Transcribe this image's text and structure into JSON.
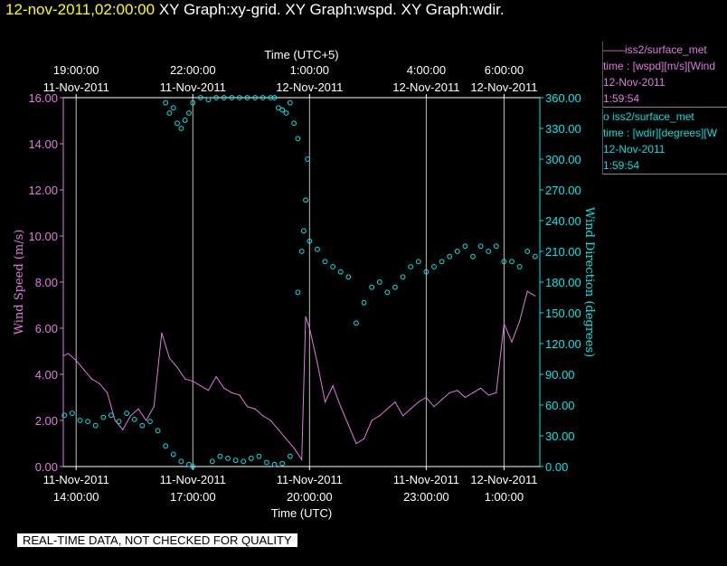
{
  "header": {
    "timestamp": "12-nov-2011,02:00:00",
    "graphs": "XY Graph:xy-grid.  XY Graph:wspd.  XY Graph:wdir."
  },
  "footer": {
    "notice": "REAL-TIME DATA, NOT CHECKED FOR QUALITY"
  },
  "legends": [
    {
      "marker": "——",
      "series": "iss2/surface_met",
      "var": "time : [wspd][m/s][Wind",
      "date": "12-Nov-2011",
      "time": "1:59:54"
    },
    {
      "marker": "o",
      "series": "iss2/surface_met",
      "var": "time : [wdir][degrees][W",
      "date": "12-Nov-2011",
      "time": "1:59:54"
    }
  ],
  "colors": {
    "speed": "#e07ae0",
    "direction": "#00e8e8",
    "grid": "#c0c0c0",
    "axis": "#ffffff",
    "timestamp": "#ffff00"
  },
  "chart_data": {
    "type": "line",
    "title": "XY Graph:xy-grid.  XY Graph:wspd.  XY Graph:wdir.",
    "xlabel": "Time (UTC)",
    "x2label": "Time (UTC+5)",
    "ylabel": "Wind Speed (m/s)",
    "y2label": "Wind Direction (degrees)",
    "ylim": [
      0,
      16
    ],
    "y2lim": [
      0,
      360
    ],
    "xlim": [
      13.67,
      25.92
    ],
    "grid": true,
    "x_ticks_bottom": [
      {
        "x": 14,
        "line1": "11-Nov-2011",
        "line2": "14:00:00"
      },
      {
        "x": 17,
        "line1": "11-Nov-2011",
        "line2": "17:00:00"
      },
      {
        "x": 20,
        "line1": "11-Nov-2011",
        "line2": "20:00:00"
      },
      {
        "x": 23,
        "line1": "11-Nov-2011",
        "line2": "23:00:00"
      },
      {
        "x": 25,
        "line1": "12-Nov-2011",
        "line2": "1:00:00"
      }
    ],
    "x_ticks_top": [
      {
        "x": 14,
        "line1": "19:00:00",
        "line2": "11-Nov-2011"
      },
      {
        "x": 17,
        "line1": "22:00:00",
        "line2": "11-Nov-2011"
      },
      {
        "x": 20,
        "line1": "1:00:00",
        "line2": "12-Nov-2011"
      },
      {
        "x": 23,
        "line1": "4:00:00",
        "line2": "12-Nov-2011"
      },
      {
        "x": 25,
        "line1": "6:00:00",
        "line2": "12-Nov-2011"
      }
    ],
    "y_ticks": [
      "0.00",
      "2.00",
      "4.00",
      "6.00",
      "8.00",
      "10.00",
      "12.00",
      "14.00",
      "16.00"
    ],
    "y2_ticks": [
      "0.00",
      "30.00",
      "60.00",
      "90.00",
      "120.00",
      "150.00",
      "180.00",
      "210.00",
      "240.00",
      "270.00",
      "300.00",
      "330.00",
      "360.00"
    ],
    "series": [
      {
        "name": "iss2/surface_met",
        "axis": "left",
        "style": "line",
        "x": [
          13.67,
          13.8,
          14.0,
          14.2,
          14.4,
          14.6,
          14.8,
          15.0,
          15.2,
          15.4,
          15.6,
          15.8,
          16.0,
          16.2,
          16.4,
          16.6,
          16.8,
          17.0,
          17.2,
          17.4,
          17.6,
          17.8,
          18.0,
          18.2,
          18.4,
          18.6,
          18.8,
          19.0,
          19.2,
          19.4,
          19.6,
          19.8,
          19.9,
          20.0,
          20.2,
          20.4,
          20.6,
          20.8,
          21.0,
          21.2,
          21.4,
          21.6,
          21.8,
          22.0,
          22.2,
          22.4,
          22.6,
          22.8,
          23.0,
          23.2,
          23.4,
          23.6,
          23.8,
          24.0,
          24.2,
          24.4,
          24.6,
          24.8,
          25.0,
          25.2,
          25.4,
          25.6,
          25.8
        ],
        "values": [
          4.8,
          4.9,
          4.6,
          4.2,
          3.8,
          3.6,
          3.2,
          2.0,
          1.6,
          2.2,
          2.5,
          2.0,
          2.6,
          5.8,
          4.7,
          4.3,
          3.8,
          3.7,
          3.5,
          3.3,
          3.9,
          3.4,
          3.2,
          3.1,
          2.6,
          2.5,
          2.2,
          2.0,
          1.6,
          1.2,
          0.8,
          0.3,
          6.5,
          6.0,
          4.5,
          2.8,
          3.5,
          2.6,
          1.8,
          1.0,
          1.2,
          2.0,
          2.2,
          2.5,
          2.8,
          2.2,
          2.5,
          2.8,
          3.0,
          2.6,
          2.9,
          3.2,
          3.3,
          3.0,
          3.2,
          3.4,
          3.1,
          3.2,
          6.2,
          5.4,
          6.3,
          7.6,
          7.4
        ]
      },
      {
        "name": "iss2/surface_met",
        "axis": "right",
        "style": "markers",
        "x": [
          13.7,
          13.9,
          14.1,
          14.3,
          14.5,
          14.7,
          14.9,
          15.1,
          15.3,
          15.5,
          15.7,
          15.9,
          16.1,
          16.3,
          16.5,
          16.7,
          16.9,
          17.0,
          17.5,
          17.7,
          17.9,
          18.1,
          18.3,
          18.5,
          18.7,
          18.9,
          19.1,
          19.3,
          19.5,
          19.7,
          19.8,
          19.85,
          19.9,
          19.95,
          20.0,
          20.2,
          20.4,
          20.6,
          20.8,
          21.0,
          21.2,
          21.4,
          21.6,
          21.8,
          22.0,
          22.2,
          22.4,
          22.6,
          22.8,
          23.0,
          23.2,
          23.4,
          23.6,
          23.8,
          24.0,
          24.2,
          24.4,
          24.6,
          24.8,
          25.0,
          25.2,
          25.4,
          25.6,
          25.8
        ],
        "values": [
          50,
          52,
          45,
          44,
          40,
          48,
          50,
          44,
          52,
          46,
          40,
          44,
          35,
          20,
          12,
          5,
          2,
          0,
          5,
          10,
          8,
          6,
          5,
          8,
          10,
          4,
          2,
          3,
          10,
          170,
          210,
          230,
          260,
          300,
          220,
          212,
          200,
          195,
          190,
          185,
          140,
          160,
          175,
          180,
          170,
          175,
          185,
          195,
          200,
          190,
          195,
          200,
          205,
          210,
          215,
          205,
          215,
          210,
          215,
          200,
          200,
          195,
          210,
          205
        ]
      },
      {
        "name": "iss2/surface_met",
        "axis": "right",
        "style": "markers",
        "segment": "upper",
        "x": [
          16.3,
          16.4,
          16.5,
          16.6,
          16.7,
          16.8,
          16.9,
          17.0,
          17.2,
          17.4,
          17.6,
          17.8,
          18.0,
          18.2,
          18.4,
          18.6,
          18.8,
          19.0,
          19.1,
          19.2,
          19.3,
          19.4,
          19.5,
          19.6,
          19.7
        ],
        "values": [
          355,
          345,
          350,
          335,
          330,
          338,
          345,
          355,
          360,
          358,
          360,
          360,
          360,
          360,
          360,
          360,
          360,
          360,
          360,
          350,
          348,
          345,
          355,
          335,
          320
        ]
      }
    ]
  }
}
